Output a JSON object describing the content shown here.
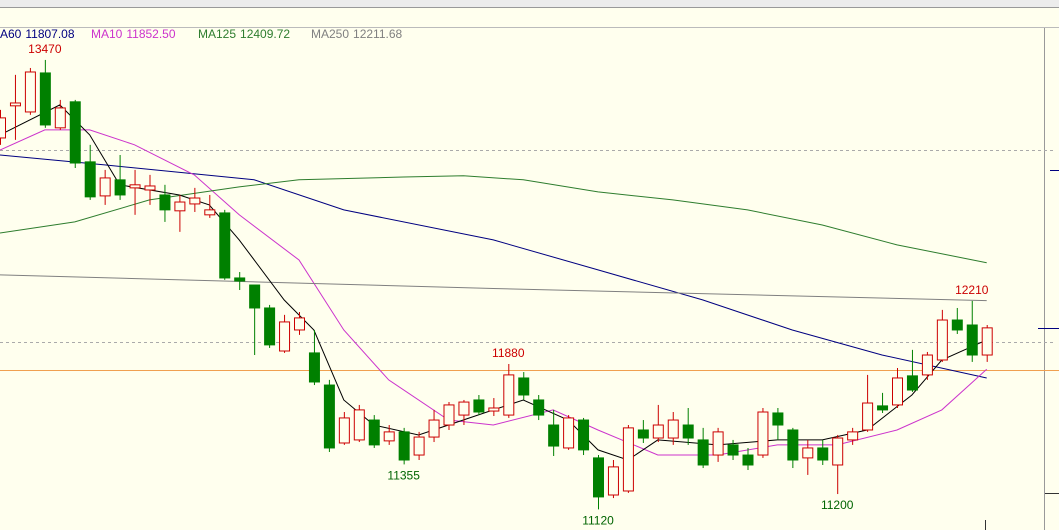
{
  "chart_data": {
    "type": "candlestick",
    "categories": [
      null,
      null,
      null,
      null,
      null,
      null,
      null,
      null,
      null,
      null,
      null,
      null,
      null,
      null,
      null,
      null,
      null,
      null,
      null,
      null,
      null,
      null,
      null,
      null,
      null,
      null,
      null,
      null,
      null,
      null,
      null,
      null,
      null,
      null,
      null,
      null,
      null,
      null,
      null,
      null,
      null,
      null,
      null,
      null,
      null,
      null,
      null,
      null,
      null,
      null,
      null,
      null,
      null,
      null,
      null,
      null,
      null,
      null,
      null,
      null,
      null,
      null,
      null,
      null,
      null,
      null,
      null
    ],
    "open": [
      13062,
      13230,
      13198,
      13402,
      13115,
      13251,
      12937,
      12759,
      12843,
      12801,
      12790,
      12764,
      12681,
      12717,
      12660,
      12670,
      12330,
      12293,
      12173,
      11948,
      12058,
      11938,
      11770,
      11467,
      11483,
      11587,
      11478,
      11525,
      11404,
      11498,
      11561,
      11613,
      11692,
      11634,
      11613,
      11807,
      11692,
      11561,
      11441,
      11587,
      11389,
      11195,
      11216,
      11535,
      11493,
      11493,
      11561,
      11483,
      11404,
      11457,
      11404,
      11404,
      11624,
      11535,
      11389,
      11441,
      11352,
      11483,
      11535,
      11661,
      11666,
      11818,
      11823,
      11901,
      12110,
      12084,
      11927
    ],
    "high": [
      13209,
      13392,
      13428,
      13470,
      13261,
      13261,
      13026,
      12895,
      12973,
      12895,
      12869,
      12817,
      12764,
      12801,
      12764,
      12686,
      12361,
      12293,
      12189,
      12137,
      12152,
      12058,
      11797,
      11629,
      11666,
      11613,
      11561,
      11546,
      11525,
      11640,
      11681,
      11692,
      11718,
      11702,
      11880,
      11838,
      11718,
      11640,
      11613,
      11598,
      11404,
      11378,
      11561,
      11587,
      11666,
      11629,
      11650,
      11546,
      11546,
      11483,
      11441,
      11650,
      11650,
      11546,
      11483,
      11483,
      11509,
      11546,
      11823,
      11729,
      11859,
      11954,
      11943,
      12163,
      12173,
      12210,
      12084
    ],
    "low": [
      13026,
      13052,
      13183,
      13115,
      13104,
      12905,
      12738,
      12712,
      12738,
      12660,
      12712,
      12623,
      12571,
      12675,
      12644,
      12320,
      12267,
      11927,
      11964,
      11938,
      12032,
      11770,
      11420,
      11457,
      11472,
      11441,
      11457,
      11355,
      11378,
      11472,
      11535,
      11561,
      11613,
      11608,
      11598,
      11692,
      11587,
      11399,
      11431,
      11404,
      11120,
      11179,
      11206,
      11467,
      11472,
      11457,
      11457,
      11336,
      11368,
      11378,
      11326,
      11389,
      11483,
      11336,
      11300,
      11352,
      11200,
      11457,
      11525,
      11624,
      11650,
      11734,
      11797,
      11891,
      12037,
      11891,
      11891
    ],
    "close": [
      13167,
      13245,
      13407,
      13130,
      13219,
      12931,
      12754,
      12853,
      12764,
      12817,
      12811,
      12686,
      12727,
      12748,
      12686,
      12330,
      12314,
      12173,
      11980,
      12100,
      12121,
      11786,
      11441,
      11598,
      11640,
      11457,
      11525,
      11378,
      11498,
      11587,
      11666,
      11681,
      11629,
      11650,
      11823,
      11718,
      11613,
      11451,
      11598,
      11431,
      11185,
      11342,
      11546,
      11493,
      11561,
      11587,
      11493,
      11352,
      11525,
      11404,
      11352,
      11629,
      11561,
      11378,
      11441,
      11378,
      11493,
      11525,
      11676,
      11640,
      11807,
      11744,
      11927,
      12110,
      12058,
      11927,
      12069
    ],
    "up_color": "#cc0000",
    "down_color": "#008000",
    "high_labels": [
      3,
      34,
      65
    ],
    "low_labels": [
      27,
      40,
      56
    ],
    "ylim": [
      11012,
      13637
    ],
    "series": [
      {
        "name": "MA60",
        "color": "#000080",
        "legend_value": 11807.08,
        "x": [
          0,
          7,
          17,
          23,
          33,
          40,
          47,
          53,
          59,
          66
        ],
        "values": [
          12973,
          12921,
          12843,
          12686,
          12529,
          12372,
          12215,
          12058,
          11927,
          11807.08
        ]
      },
      {
        "name": "MA10",
        "color": "#cc33cc",
        "legend_value": {
          "value": 11852.5,
          "label": "11852.50"
        },
        "x": [
          0,
          3,
          6,
          9,
          13,
          16,
          20,
          23,
          26,
          30,
          33,
          37,
          40,
          44,
          48,
          52,
          56,
          60,
          63,
          66
        ],
        "values": [
          12999,
          13104,
          13104,
          13026,
          12869,
          12660,
          12424,
          12058,
          11797,
          11587,
          11561,
          11640,
          11535,
          11404,
          11404,
          11457,
          11457,
          11535,
          11640,
          11852.5
        ]
      },
      {
        "name": "MA125",
        "color": "#2e7d2e",
        "legend_value": 12409.72,
        "x": [
          0,
          5,
          10,
          16,
          20,
          27,
          31,
          35,
          40,
          45,
          50,
          55,
          60,
          66
        ],
        "values": [
          12565,
          12623,
          12738,
          12806,
          12843,
          12858,
          12864,
          12843,
          12780,
          12738,
          12686,
          12607,
          12503,
          12409.72
        ]
      },
      {
        "name": "MA250",
        "color": "#808080",
        "legend_value": 12211.68,
        "x": [
          0,
          33,
          66
        ],
        "values": [
          12346,
          12275,
          12211.68
        ]
      },
      {
        "color": "#000000",
        "x": [
          0,
          4,
          6,
          8,
          12,
          14,
          16,
          19,
          21,
          23,
          25,
          28,
          30,
          33,
          35,
          38,
          40,
          42,
          44,
          48,
          52,
          55,
          58,
          61,
          63,
          66
        ],
        "values": [
          13078,
          13235,
          13078,
          12817,
          12764,
          12712,
          12529,
          12215,
          12058,
          11692,
          11561,
          11509,
          11561,
          11640,
          11692,
          11587,
          11431,
          11378,
          11483,
          11457,
          11483,
          11483,
          11535,
          11718,
          11901,
          12006
        ]
      }
    ]
  }
}
